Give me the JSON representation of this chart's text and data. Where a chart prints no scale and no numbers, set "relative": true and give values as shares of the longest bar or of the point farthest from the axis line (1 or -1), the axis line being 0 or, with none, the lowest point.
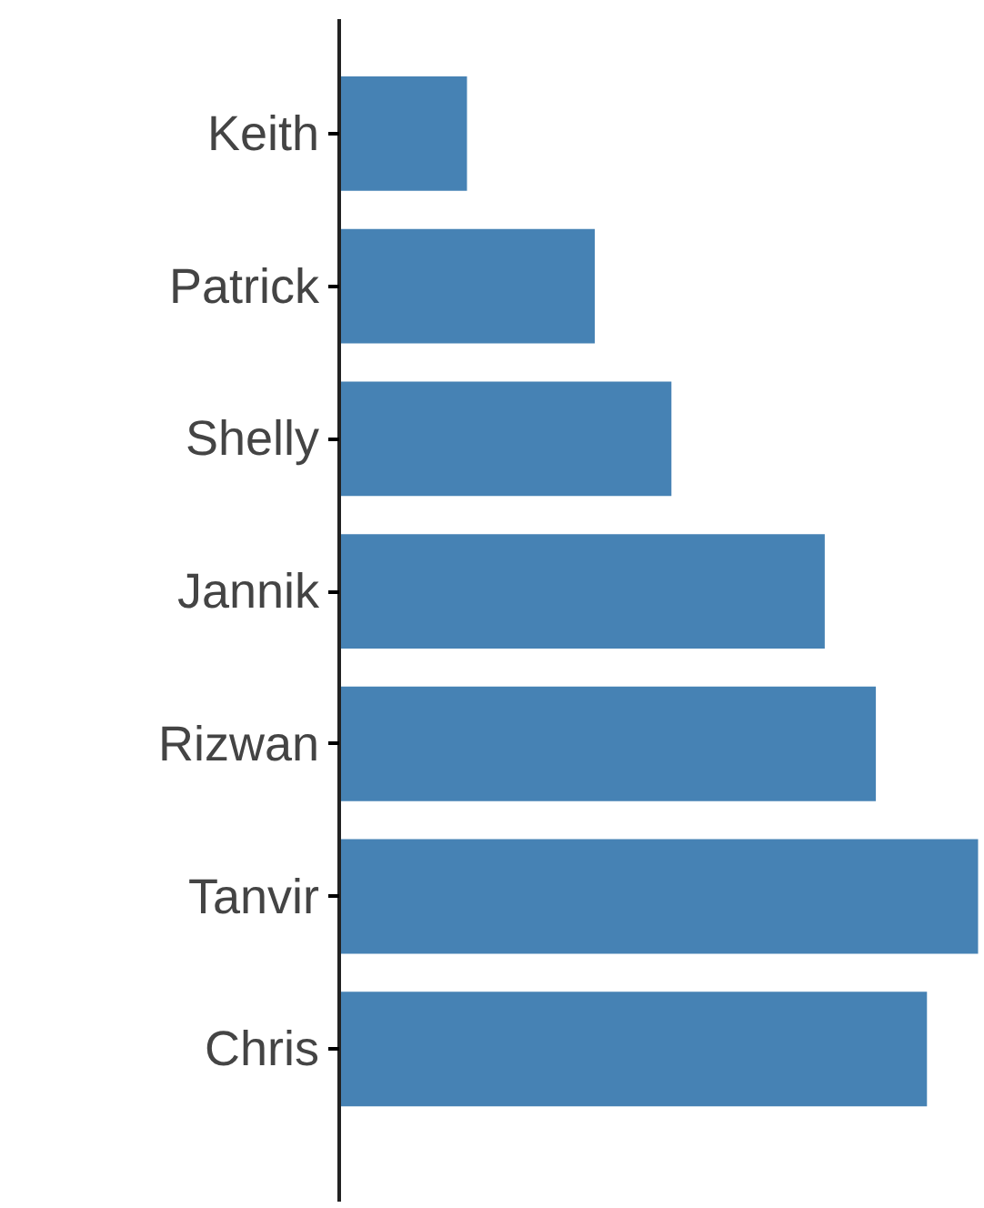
{
  "chart_data": {
    "type": "bar",
    "orientation": "horizontal",
    "relative": true,
    "categories": [
      "Keith",
      "Patrick",
      "Shelly",
      "Jannik",
      "Rizwan",
      "Tanvir",
      "Chris"
    ],
    "values": [
      0.2,
      0.4,
      0.52,
      0.76,
      0.84,
      1,
      0.92
    ],
    "color": "#4682b4"
  }
}
